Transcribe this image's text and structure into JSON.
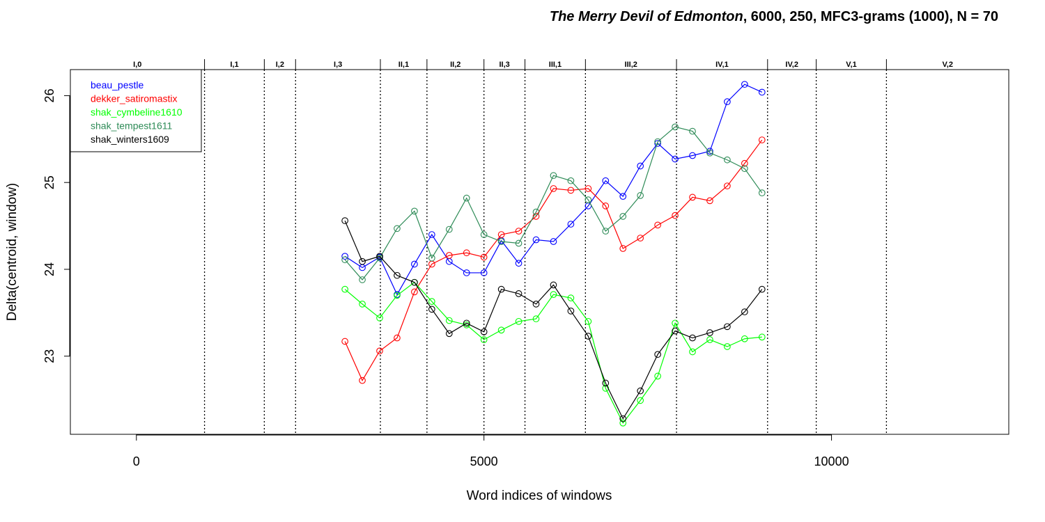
{
  "chart_data": {
    "type": "line",
    "title_italic": "The Merry Devil of Edmonton",
    "title_rest": ", 6000, 250, MFC3-grams (1000), N = 70",
    "xlabel": "Word indices of windows",
    "ylabel": "Delta(centroid, window)",
    "xlim": [
      -950,
      12550
    ],
    "ylim": [
      22.1,
      26.3
    ],
    "x_ticks": [
      0,
      5000,
      10000
    ],
    "y_ticks": [
      23,
      24,
      25,
      26
    ],
    "grid": false,
    "legend_position": "top-left",
    "act_scenes": [
      {
        "label": "I,0",
        "start": -950,
        "end": 980
      },
      {
        "label": "I,1",
        "start": 980,
        "end": 1840
      },
      {
        "label": "I,2",
        "start": 1840,
        "end": 2290
      },
      {
        "label": "I,3",
        "start": 2290,
        "end": 3510
      },
      {
        "label": "II,1",
        "start": 3510,
        "end": 4180
      },
      {
        "label": "II,2",
        "start": 4180,
        "end": 5000
      },
      {
        "label": "II,3",
        "start": 5000,
        "end": 5590
      },
      {
        "label": "III,1",
        "start": 5590,
        "end": 6460
      },
      {
        "label": "III,2",
        "start": 6460,
        "end": 7770
      },
      {
        "label": "IV,1",
        "start": 7770,
        "end": 9080
      },
      {
        "label": "IV,2",
        "start": 9080,
        "end": 9780
      },
      {
        "label": "V,1",
        "start": 9780,
        "end": 10790
      },
      {
        "label": "V,2",
        "start": 10790,
        "end": 12550
      }
    ],
    "x": [
      3000,
      3250,
      3500,
      3750,
      4000,
      4250,
      4500,
      4750,
      5000,
      5250,
      5500,
      5750,
      6000,
      6250,
      6500,
      6750,
      7000,
      7250,
      7500,
      7750,
      8000,
      8250,
      8500,
      8750,
      9000
    ],
    "series": [
      {
        "name": "beau_pestle",
        "color": "#0000ff",
        "values": [
          24.15,
          24.02,
          24.14,
          23.71,
          24.06,
          24.4,
          24.09,
          23.96,
          23.96,
          24.33,
          24.07,
          24.34,
          24.32,
          24.52,
          24.73,
          25.02,
          24.84,
          25.19,
          25.45,
          25.27,
          25.31,
          25.36,
          25.93,
          26.13,
          26.04
        ]
      },
      {
        "name": "dekker_satiromastix",
        "color": "#ff0000",
        "values": [
          23.17,
          22.72,
          23.06,
          23.21,
          23.74,
          24.06,
          24.16,
          24.19,
          24.14,
          24.4,
          24.44,
          24.61,
          24.93,
          24.91,
          24.93,
          24.73,
          24.24,
          24.36,
          24.51,
          24.62,
          24.83,
          24.79,
          24.96,
          25.22,
          25.49
        ]
      },
      {
        "name": "shak_cymbeline1610",
        "color": "#00ff00",
        "values": [
          23.77,
          23.6,
          23.44,
          23.7,
          23.85,
          23.63,
          23.41,
          23.36,
          23.19,
          23.3,
          23.4,
          23.43,
          23.71,
          23.67,
          23.4,
          22.63,
          22.23,
          22.49,
          22.77,
          23.38,
          23.05,
          23.19,
          23.11,
          23.2,
          23.22
        ]
      },
      {
        "name": "shak_tempest1611",
        "color": "#2e8b57",
        "values": [
          24.11,
          23.88,
          24.13,
          24.47,
          24.67,
          24.13,
          24.46,
          24.82,
          24.4,
          24.32,
          24.3,
          24.66,
          25.08,
          25.02,
          24.8,
          24.44,
          24.61,
          24.85,
          25.47,
          25.64,
          25.59,
          25.34,
          25.26,
          25.16,
          24.88
        ]
      },
      {
        "name": "shak_winters1609",
        "color": "#000000",
        "values": [
          24.56,
          24.09,
          24.15,
          23.93,
          23.85,
          23.54,
          23.26,
          23.38,
          23.28,
          23.77,
          23.72,
          23.6,
          23.82,
          23.52,
          23.23,
          22.69,
          22.28,
          22.6,
          23.02,
          23.29,
          23.21,
          23.27,
          23.34,
          23.51,
          23.77
        ]
      }
    ]
  }
}
